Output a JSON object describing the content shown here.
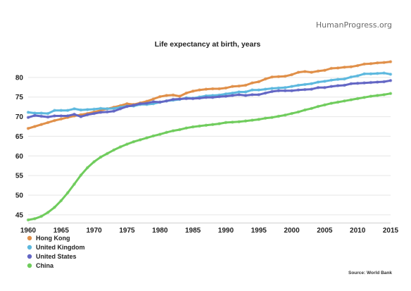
{
  "brand": "HumanProgress.org",
  "source": "Source: World Bank",
  "chart_data": {
    "type": "line",
    "title": "Life expectancy at birth, years",
    "xlabel": "",
    "ylabel": "",
    "xlim": [
      1960,
      2015
    ],
    "ylim": [
      43,
      85
    ],
    "x_ticks": [
      1960,
      1965,
      1970,
      1975,
      1980,
      1985,
      1990,
      1995,
      2000,
      2005,
      2010,
      2015
    ],
    "y_ticks": [
      45,
      50,
      55,
      60,
      65,
      70,
      75,
      80
    ],
    "grid": true,
    "legend_position": "bottom-left",
    "x": [
      1960,
      1961,
      1962,
      1963,
      1964,
      1965,
      1966,
      1967,
      1968,
      1969,
      1970,
      1971,
      1972,
      1973,
      1974,
      1975,
      1976,
      1977,
      1978,
      1979,
      1980,
      1981,
      1982,
      1983,
      1984,
      1985,
      1986,
      1987,
      1988,
      1989,
      1990,
      1991,
      1992,
      1993,
      1994,
      1995,
      1996,
      1997,
      1998,
      1999,
      2000,
      2001,
      2002,
      2003,
      2004,
      2005,
      2006,
      2007,
      2008,
      2009,
      2010,
      2011,
      2012,
      2013,
      2014,
      2015
    ],
    "series": [
      {
        "name": "Hong Kong",
        "color": "#e08f48",
        "values": [
          67.0,
          67.5,
          68.0,
          68.5,
          69.0,
          69.4,
          69.8,
          70.2,
          70.5,
          70.8,
          71.2,
          71.6,
          72.0,
          72.4,
          72.8,
          73.3,
          73.1,
          73.5,
          73.9,
          74.5,
          75.1,
          75.4,
          75.5,
          75.2,
          76.0,
          76.5,
          76.8,
          77.0,
          77.1,
          77.1,
          77.3,
          77.7,
          77.8,
          78.0,
          78.6,
          78.9,
          79.6,
          80.1,
          80.2,
          80.3,
          80.7,
          81.3,
          81.5,
          81.3,
          81.6,
          81.8,
          82.3,
          82.4,
          82.6,
          82.7,
          83.0,
          83.4,
          83.5,
          83.7,
          83.8,
          84.0
        ]
      },
      {
        "name": "United Kingdom",
        "color": "#5cb8de",
        "values": [
          71.1,
          70.9,
          70.9,
          70.8,
          71.6,
          71.6,
          71.6,
          72.0,
          71.7,
          71.8,
          71.9,
          72.1,
          72.0,
          72.1,
          72.4,
          72.7,
          72.7,
          73.1,
          73.1,
          73.3,
          73.7,
          74.0,
          74.2,
          74.4,
          74.8,
          74.7,
          75.0,
          75.3,
          75.4,
          75.5,
          75.8,
          76.0,
          76.3,
          76.3,
          76.8,
          76.8,
          77.0,
          77.2,
          77.3,
          77.4,
          77.7,
          78.0,
          78.2,
          78.4,
          78.8,
          79.0,
          79.3,
          79.5,
          79.6,
          80.1,
          80.4,
          80.9,
          80.9,
          81.0,
          81.1,
          80.8
        ]
      },
      {
        "name": "United States",
        "color": "#6366c4",
        "values": [
          69.8,
          70.3,
          70.1,
          69.9,
          70.2,
          70.2,
          70.2,
          70.6,
          70.0,
          70.5,
          70.8,
          71.1,
          71.2,
          71.4,
          72.0,
          72.6,
          72.9,
          73.3,
          73.4,
          73.8,
          73.7,
          74.0,
          74.4,
          74.5,
          74.6,
          74.6,
          74.7,
          74.9,
          74.9,
          75.1,
          75.2,
          75.4,
          75.6,
          75.4,
          75.6,
          75.6,
          76.0,
          76.4,
          76.6,
          76.6,
          76.6,
          76.8,
          76.9,
          77.0,
          77.4,
          77.4,
          77.7,
          77.9,
          78.0,
          78.4,
          78.5,
          78.6,
          78.7,
          78.8,
          78.9,
          79.2
        ]
      },
      {
        "name": "China",
        "color": "#6fcc5c",
        "values": [
          43.7,
          44.0,
          44.6,
          45.6,
          46.9,
          48.6,
          50.6,
          52.8,
          55.1,
          57.0,
          58.5,
          59.7,
          60.6,
          61.5,
          62.3,
          63.0,
          63.6,
          64.1,
          64.6,
          65.1,
          65.5,
          66.0,
          66.4,
          66.7,
          67.1,
          67.4,
          67.6,
          67.8,
          68.0,
          68.2,
          68.5,
          68.6,
          68.7,
          68.9,
          69.1,
          69.3,
          69.6,
          69.8,
          70.1,
          70.4,
          70.8,
          71.2,
          71.7,
          72.1,
          72.6,
          73.0,
          73.4,
          73.7,
          74.0,
          74.3,
          74.6,
          74.9,
          75.2,
          75.4,
          75.6,
          75.9
        ]
      }
    ]
  }
}
